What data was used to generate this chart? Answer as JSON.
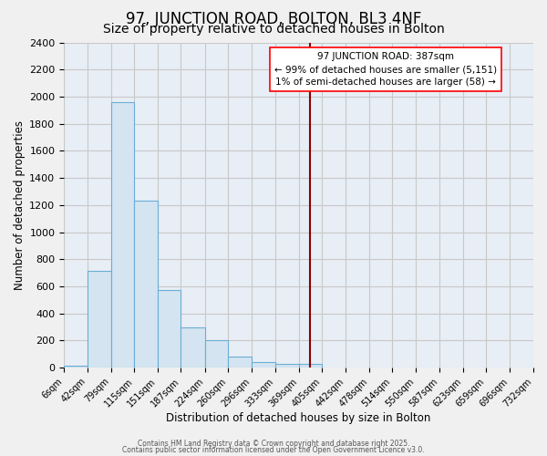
{
  "title": "97, JUNCTION ROAD, BOLTON, BL3 4NF",
  "subtitle": "Size of property relative to detached houses in Bolton",
  "xlabel": "Distribution of detached houses by size in Bolton",
  "ylabel": "Number of detached properties",
  "bin_edges": [
    6,
    42,
    79,
    115,
    151,
    187,
    224,
    260,
    296,
    333,
    369,
    405,
    442,
    478,
    514,
    550,
    587,
    623,
    659,
    696,
    732
  ],
  "bar_heights": [
    15,
    715,
    1960,
    1235,
    575,
    300,
    200,
    80,
    40,
    25,
    30,
    0,
    0,
    0,
    0,
    0,
    0,
    0,
    0,
    0
  ],
  "bar_color": "#d4e4f0",
  "bar_edge_color": "#6aaed6",
  "vline_x": 387,
  "vline_color": "#8b0000",
  "annotation_title": "97 JUNCTION ROAD: 387sqm",
  "annotation_line1": "← 99% of detached houses are smaller (5,151)",
  "annotation_line2": "1% of semi-detached houses are larger (58) →",
  "ylim": [
    0,
    2400
  ],
  "tick_labels": [
    "6sqm",
    "42sqm",
    "79sqm",
    "115sqm",
    "151sqm",
    "187sqm",
    "224sqm",
    "260sqm",
    "296sqm",
    "333sqm",
    "369sqm",
    "405sqm",
    "442sqm",
    "478sqm",
    "514sqm",
    "550sqm",
    "587sqm",
    "623sqm",
    "659sqm",
    "696sqm",
    "732sqm"
  ],
  "footnote1": "Contains HM Land Registry data © Crown copyright and database right 2025.",
  "footnote2": "Contains public sector information licensed under the Open Government Licence v3.0.",
  "plot_bg_color": "#e8eef5",
  "fig_bg_color": "#f0f0f0",
  "grid_color": "#c8c8c8",
  "title_fontsize": 12,
  "subtitle_fontsize": 10,
  "label_fontsize": 8.5,
  "tick_fontsize": 7
}
